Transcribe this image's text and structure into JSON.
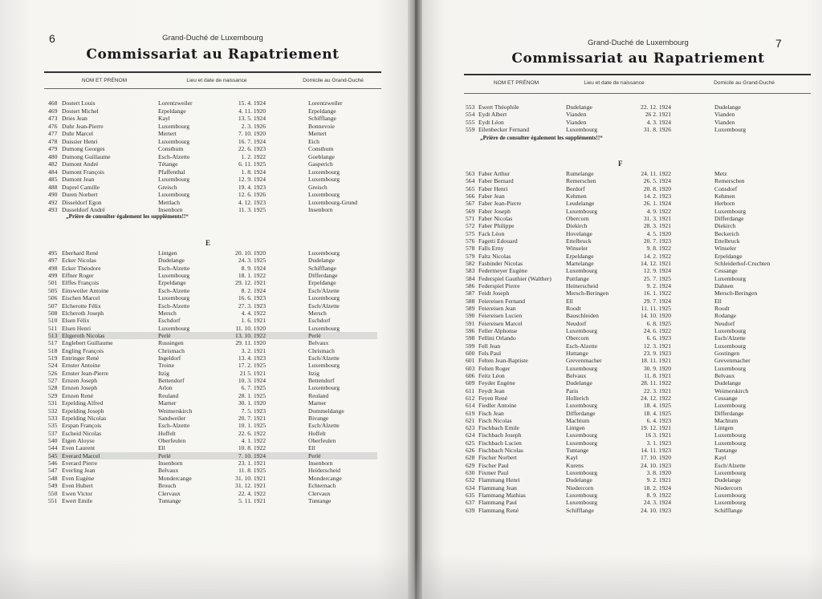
{
  "highlighted_rows": [
    "513",
    "545"
  ],
  "left": {
    "page_number": "6",
    "country": "Grand-Duché de Luxembourg",
    "title": "Commissariat au Rapatriement",
    "columns": [
      "NOM ET PRÉNOM",
      "Lieu et date de naissance",
      "Domicile au Grand-Duché"
    ],
    "note": "„Prière de consulter également les suppléments!!“",
    "section_letter": "E",
    "rows_d": [
      [
        "468",
        "Dostert Louis",
        "Lorentzweiler",
        "15. 4. 1924",
        "Lorentzweiler"
      ],
      [
        "469",
        "Dostert Michel",
        "Erpeldange",
        "4. 11. 1920",
        "Erpeldange"
      ],
      [
        "473",
        "Dries Jean",
        "Kayl",
        "13. 5. 1924",
        "Schifflange"
      ],
      [
        "476",
        "Duhr Jean-Pierre",
        "Luxembourg",
        "2. 3. 1926",
        "Bonnevoie"
      ],
      [
        "477",
        "Duhr Marcel",
        "Mertert",
        "7. 10. 1920",
        "Mertert"
      ],
      [
        "478",
        "Duissier Henri",
        "Luxembourg",
        "16. 7. 1924",
        "Eich"
      ],
      [
        "479",
        "Dumong Georges",
        "Consthum",
        "22. 6. 1923",
        "Consthum"
      ],
      [
        "480",
        "Dumong Guillaume",
        "Esch-Alzette",
        "1. 2. 1922",
        "Goeblange"
      ],
      [
        "482",
        "Dumont André",
        "Tétange",
        "6. 11. 1925",
        "Gasperich"
      ],
      [
        "484",
        "Dumont François",
        "Pfaffenthal",
        "1. 8. 1924",
        "Luxembourg"
      ],
      [
        "485",
        "Dumont Jean",
        "Luxembourg",
        "12. 9. 1924",
        "Luxembourg"
      ],
      [
        "488",
        "Duprel Camille",
        "Greisch",
        "19. 4. 1923",
        "Greisch"
      ],
      [
        "490",
        "Duren Norbert",
        "Luxembourg",
        "12. 6. 1926",
        "Luxembourg"
      ],
      [
        "492",
        "Disseldorf Egon",
        "Mettlach",
        "4. 12. 1923",
        "Luxembourg-Grund"
      ],
      [
        "493",
        "Dusseldorf André",
        "Insenborn",
        "11. 3. 1925",
        "Insenborn"
      ]
    ],
    "rows_e": [
      [
        "495",
        "Eberhard René",
        "Lintgen",
        "20. 10. 1920",
        "Luxembourg"
      ],
      [
        "497",
        "Ecker Nicolas",
        "Dudelange",
        "24. 3. 1925",
        "Dudelange"
      ],
      [
        "498",
        "Ecker Théodore",
        "Esch-Alzette",
        "8. 9. 1924",
        "Schifflange"
      ],
      [
        "499",
        "Effner Roger",
        "Luxembourg",
        "18. 1. 1922",
        "Differdange"
      ],
      [
        "501",
        "Elffes François",
        "Erpeldange",
        "29. 12. 1921",
        "Erpeldange"
      ],
      [
        "505",
        "Einsweiler Antoine",
        "Esch-Alzette",
        "8. 2. 1924",
        "Esch/Alzette"
      ],
      [
        "506",
        "Eischen Marcel",
        "Luxembourg",
        "16. 6. 1923",
        "Luxembourg"
      ],
      [
        "507",
        "Elcherotte Félix",
        "Esch-Alzette",
        "27. 3. 1923",
        "Esch/Alzette"
      ],
      [
        "508",
        "Elcheroth Joseph",
        "Mersch",
        "4. 4. 1922",
        "Mersch"
      ],
      [
        "510",
        "Elsen Félix",
        "Eschdorf",
        "1. 6. 1921",
        "Eschdorf"
      ],
      [
        "511",
        "Elsen Henri",
        "Luxembourg",
        "11. 10. 1920",
        "Luxembourg"
      ],
      [
        "513",
        "Eltgeroth Nicolas",
        "Perlé",
        "13. 10. 1922",
        "Perlé"
      ],
      [
        "517",
        "Englebert Guillaume",
        "Russingen",
        "29. 11. 1920",
        "Belvaux"
      ],
      [
        "518",
        "Engling François",
        "Christnach",
        "3. 2. 1921",
        "Christnach"
      ],
      [
        "519",
        "Entringer René",
        "Ingeldorf",
        "13. 4. 1923",
        "Esch/Alzette"
      ],
      [
        "524",
        "Ernster Antoine",
        "Troine",
        "17. 2. 1925",
        "Luxembourg"
      ],
      [
        "526",
        "Ernster Jean-Pierre",
        "Itzig",
        "21 5. 1921",
        "Itzig"
      ],
      [
        "527",
        "Ernzen Joseph",
        "Bettendorf",
        "10. 3. 1924",
        "Bettendorf"
      ],
      [
        "528",
        "Ernzen Joseph",
        "Arlon",
        "6. 7. 1925",
        "Luxembourg"
      ],
      [
        "529",
        "Ernzen René",
        "Reuland",
        "28. 1. 1925",
        "Reuland"
      ],
      [
        "531",
        "Erpelding Alfred",
        "Marner",
        "30. 1. 1920",
        "Marner"
      ],
      [
        "532",
        "Erpelding Joseph",
        "Weimerskirch",
        "7. 5. 1923",
        "Dommeldange"
      ],
      [
        "533",
        "Erpelding Nicolas",
        "Sandweiler",
        "20. 7. 1921",
        "Bivange"
      ],
      [
        "535",
        "Erspan François",
        "Esch-Alzette",
        "10. 1. 1925",
        "Esch/Alzette"
      ],
      [
        "537",
        "Escheid Nicolas",
        "Hoffelt",
        "22. 6. 1922",
        "Hoffelt"
      ],
      [
        "540",
        "Etgen Aloyse",
        "Oberfeulen",
        "4. 1. 1922",
        "Oberfeulen"
      ],
      [
        "544",
        "Even Laurent",
        "Ell",
        "10. 8. 1922",
        "Ell"
      ],
      [
        "545",
        "Everard Marcel",
        "Perlé",
        "7. 10. 1924",
        "Perlé"
      ],
      [
        "546",
        "Everard Pierre",
        "Insenborn",
        "23. 1. 1921",
        "Insenborn"
      ],
      [
        "547",
        "Everling Jean",
        "Belvaux",
        "11. 8. 1925",
        "Heiderscheid"
      ],
      [
        "548",
        "Even Eugène",
        "Mondercange",
        "31. 10. 1921",
        "Mondercange"
      ],
      [
        "549",
        "Even Hubert",
        "Brouch",
        "31. 12. 1921",
        "Echternach"
      ],
      [
        "550",
        "Ewen Victor",
        "Clervaux",
        "22. 4. 1922",
        "Clervaux"
      ],
      [
        "551",
        "Ewert Emile",
        "Tuntange",
        "5. 11. 1921",
        "Tuntange"
      ]
    ]
  },
  "right": {
    "page_number": "7",
    "country": "Grand-Duché de Luxembourg",
    "title": "Commissariat au Rapatriement",
    "columns": [
      "NOM ET PRÉNOM",
      "Lieu et date de naissance",
      "Domicile au Grand-Duché"
    ],
    "note": "„Prière de consulter également les suppléments!!“",
    "section_letter": "F",
    "rows_e": [
      [
        "553",
        "Ewert Théophile",
        "Dudelange",
        "22. 12. 1924",
        "Dudelange"
      ],
      [
        "554",
        "Eydt Albert",
        "Vianden",
        "26 2. 1921",
        "Vianden"
      ],
      [
        "555",
        "Eydt Léon",
        "Vianden",
        "4. 3. 1924",
        "Vianden"
      ],
      [
        "559",
        "Eilenbecker Fernand",
        "Luxembourg",
        "31. 8. 1926",
        "Luxembourg"
      ]
    ],
    "rows_f": [
      [
        "563",
        "Faber Arthur",
        "Rumelange",
        "24. 11. 1922",
        "Metz"
      ],
      [
        "564",
        "Faber Bernard",
        "Remerschen",
        "26. 5. 1924",
        "Remerschen"
      ],
      [
        "565",
        "Faber Henri",
        "Berdorf",
        "20. 8. 1920",
        "Consdorf"
      ],
      [
        "566",
        "Faber Jean",
        "Kehmen",
        "14. 2. 1923",
        "Kehmen"
      ],
      [
        "567",
        "Faber Jean-Pierre",
        "Leudelange",
        "26. 1. 1924",
        "Herborn"
      ],
      [
        "569",
        "Faber Joseph",
        "Luxembourg",
        "4. 9. 1922",
        "Luxembourg"
      ],
      [
        "571",
        "Faber Nicolas",
        "Obercorn",
        "31. 3. 1921",
        "Differdange"
      ],
      [
        "572",
        "Faber Philippe",
        "Diekirch",
        "28. 3. 1921",
        "Diekirch"
      ],
      [
        "575",
        "Fack Léon",
        "Hovelange",
        "4. 5. 1920",
        "Beckerich"
      ],
      [
        "576",
        "Fagetti Edouard",
        "Ettelbruck",
        "20. 7. 1923",
        "Ettelbruck"
      ],
      [
        "578",
        "Falls Erny",
        "Winseler",
        "9. 8. 1922",
        "Winseler"
      ],
      [
        "579",
        "Faltz Nicolas",
        "Erpeldange",
        "14. 2. 1922",
        "Erpeldange"
      ],
      [
        "582",
        "Fasbinder Nicolas",
        "Martelange",
        "14. 12. 1921",
        "Schleiderhof-Cruchten"
      ],
      [
        "583",
        "Federmeyer Eugène",
        "Luxembourg",
        "12. 9. 1924",
        "Cessange"
      ],
      [
        "584",
        "Federspiel Gauthier (Walther)",
        "Puttlange",
        "25. 7. 1925",
        "Luxembourg"
      ],
      [
        "586",
        "Federspiel Pierre",
        "Heinerscheid",
        "9. 2. 1924",
        "Dahnen"
      ],
      [
        "587",
        "Feidt Joseph",
        "Mersch-Beringen",
        "16. 1. 1922",
        "Mersch-Beringen"
      ],
      [
        "588",
        "Feiereisen Fernand",
        "Ell",
        "29. 7. 1924",
        "Ell"
      ],
      [
        "589",
        "Feiereisen Jean",
        "Roodt",
        "11. 11. 1925",
        "Roodt"
      ],
      [
        "590",
        "Feiereisen Lucien",
        "Bauschleiden",
        "14. 10. 1920",
        "Rodange"
      ],
      [
        "591",
        "Feiereisen Marcel",
        "Neudorf",
        "6. 8. 1925",
        "Neudorf"
      ],
      [
        "596",
        "Feller Alphonse",
        "Luxembourg",
        "24. 6. 1922",
        "Luxembourg"
      ],
      [
        "598",
        "Fellini Orlando",
        "Obercorn",
        "6. 6. 1923",
        "Esch/Alzette"
      ],
      [
        "599",
        "Fell Jean",
        "Esch-Alzette",
        "12. 3. 1921",
        "Luxembourg"
      ],
      [
        "600",
        "Fels Paul",
        "Huttange",
        "23. 9. 1923",
        "Gostingen"
      ],
      [
        "601",
        "Felten Jean-Baptiste",
        "Grevenmacher",
        "18. 11. 1921",
        "Grevenmacher"
      ],
      [
        "603",
        "Felten Roger",
        "Luxembourg",
        "30. 9. 1920",
        "Luxembourg"
      ],
      [
        "606",
        "Feitz Léon",
        "Belvaux",
        "11. 8. 1921",
        "Belvaux"
      ],
      [
        "609",
        "Feyder Eugène",
        "Dudelange",
        "28. 11. 1922",
        "Dudelange"
      ],
      [
        "611",
        "Feydt Jean",
        "Paris",
        "22. 3. 1921",
        "Weimerskirch"
      ],
      [
        "612",
        "Feyen René",
        "Hollerich",
        "24. 12. 1922",
        "Cessange"
      ],
      [
        "614",
        "Fiedler Antoine",
        "Luxembourg",
        "18. 4. 1925",
        "Luxembourg"
      ],
      [
        "619",
        "Fisch Jean",
        "Differdange",
        "18. 4. 1925",
        "Differdange"
      ],
      [
        "621",
        "Fisch Nicolas",
        "Machtum",
        "6. 4. 1923",
        "Machtum"
      ],
      [
        "623",
        "Fischbach Emile",
        "Lintgen",
        "19. 12. 1921",
        "Lintgen"
      ],
      [
        "624",
        "Fischbach Joseph",
        "Luxembourg",
        "16 3. 1921",
        "Luxembourg"
      ],
      [
        "625",
        "Fischbach Lucien",
        "Luxembourg",
        "3. 1. 1923",
        "Luxembourg"
      ],
      [
        "626",
        "Fischbach Nicolas",
        "Tuntange",
        "14. 11. 1923",
        "Tuntange"
      ],
      [
        "628",
        "Fischer Norbert",
        "Kayl",
        "17. 10. 1920",
        "Kayl"
      ],
      [
        "629",
        "Fischer Paul",
        "Kurens",
        "24. 10. 1923",
        "Esch/Alzette"
      ],
      [
        "630",
        "Fixmer Paul",
        "Luxembourg",
        "3. 8. 1920",
        "Luxembourg"
      ],
      [
        "632",
        "Flammang Henri",
        "Dudelange",
        "9. 2. 1921",
        "Dudelange"
      ],
      [
        "634",
        "Flammang Jean",
        "Niedercorn",
        "18. 2. 1924",
        "Niedercorn"
      ],
      [
        "635",
        "Flammang Mathias",
        "Luxembourg",
        "8. 9. 1922",
        "Luxembourg"
      ],
      [
        "637",
        "Flammang Paul",
        "Luxembourg",
        "24. 3. 1924",
        "Luxembourg"
      ],
      [
        "639",
        "Flammang René",
        "Schifflange",
        "24. 10. 1923",
        "Schifflange"
      ]
    ]
  }
}
